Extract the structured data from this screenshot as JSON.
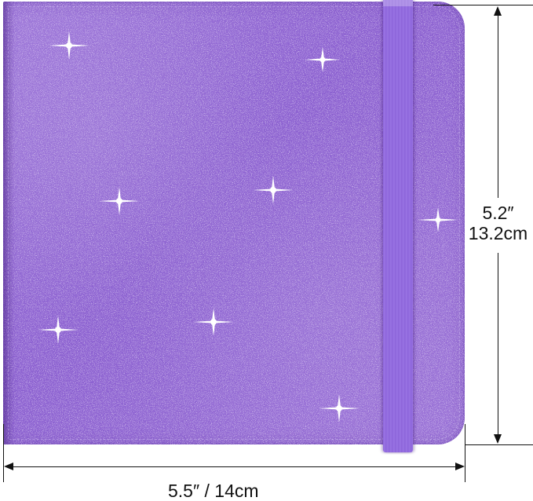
{
  "product": {
    "color": "#8e63d4",
    "finish": "glitter",
    "closure": "elastic band"
  },
  "dimensions": {
    "height_in": "5.2″",
    "height_cm": "13.2cm",
    "width_label": "5.5″ / 14cm"
  }
}
